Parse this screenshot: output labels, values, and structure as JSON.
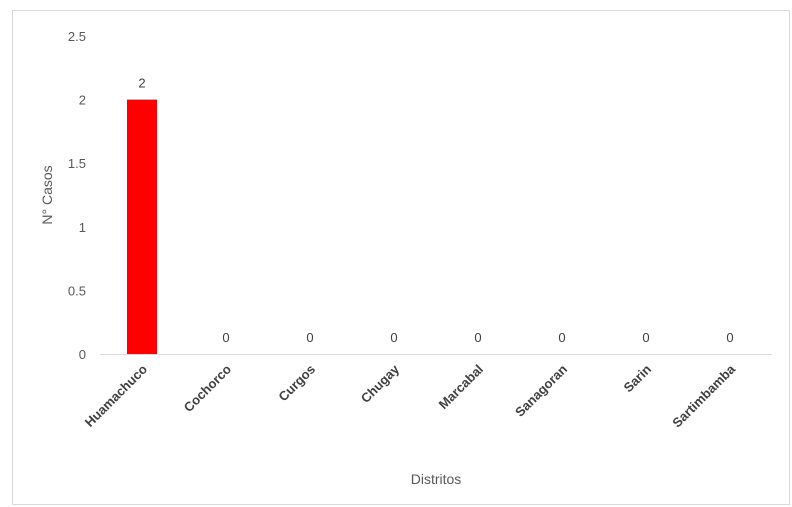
{
  "chart_data": {
    "type": "bar",
    "categories": [
      "Huamachuco",
      "Cochorco",
      "Curgos",
      "Chugay",
      "Marcabal",
      "Sanagoran",
      "Sarin",
      "Sartimbamba"
    ],
    "values": [
      2,
      0,
      0,
      0,
      0,
      0,
      0,
      0
    ],
    "data_labels": [
      "2",
      "0",
      "0",
      "0",
      "0",
      "0",
      "0",
      "0"
    ],
    "xlabel": "Distritos",
    "ylabel": "N° Casos",
    "ylim": [
      0,
      2.5
    ],
    "yticks": [
      "0",
      "0.5",
      "1",
      "1.5",
      "2",
      "2.5"
    ],
    "grid": false,
    "bar_color": "#ff0000",
    "legend": "none"
  }
}
